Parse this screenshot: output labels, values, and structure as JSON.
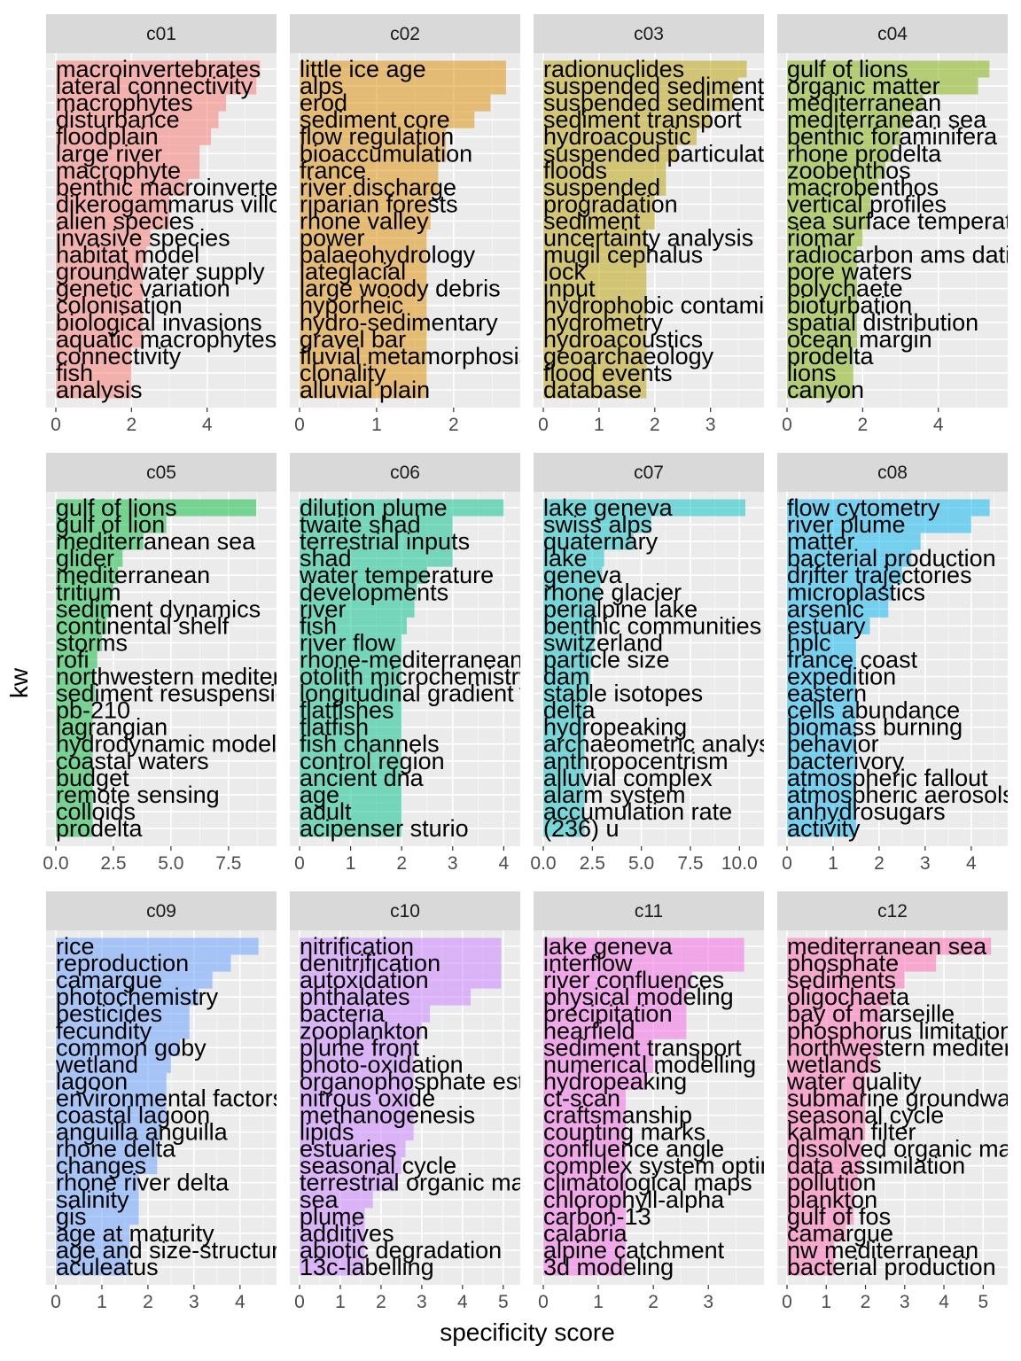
{
  "chart_data": {
    "type": "bar",
    "orientation": "horizontal",
    "facet_layout": "3x4 grid",
    "xlabel": "specificity score",
    "ylabel": "kw",
    "panels": [
      {
        "id": "c01",
        "color": "#F8766D",
        "xlim": [
          0,
          5.6
        ],
        "ticks": [
          "0",
          "2",
          "4"
        ],
        "tick_values": [
          0,
          2,
          4
        ],
        "categories": [
          "macroinvertebrates",
          "lateral connectivity",
          "macrophytes",
          "disturbance",
          "floodplain",
          "large river",
          "macrophyte",
          "benthic macroinvertebrates",
          "dikerogammarus villosus",
          "alien species",
          "invasive species",
          "habitat model",
          "groundwater supply",
          "genetic variation",
          "colonisation",
          "biological invasions",
          "aquatic macrophytes",
          "connectivity",
          "fish",
          "analysis"
        ],
        "values": [
          5.4,
          5.3,
          4.5,
          4.3,
          4.1,
          3.8,
          3.8,
          3.5,
          3.0,
          3.0,
          2.5,
          2.4,
          2.3,
          2.3,
          2.3,
          2.3,
          2.3,
          2.0,
          2.0,
          2.0
        ]
      },
      {
        "id": "c02",
        "color": "#DE8C00",
        "xlim": [
          0,
          2.75
        ],
        "ticks": [
          "0",
          "1",
          "2"
        ],
        "tick_values": [
          0,
          1,
          2
        ],
        "categories": [
          "little ice age",
          "alps",
          "erod",
          "sediment core",
          "flow regulation",
          "bioaccumulation",
          "france",
          "river discharge",
          "riparian forests",
          "rhone valley",
          "power",
          "palaeohydrology",
          "lateglacial",
          "large woody debris",
          "hyporheic",
          "hydro-sedimentary",
          "gravel bar",
          "fluvial metamorphosis",
          "clonality",
          "alluvial plain"
        ],
        "values": [
          2.68,
          2.68,
          2.48,
          2.27,
          1.9,
          1.9,
          1.8,
          1.8,
          1.7,
          1.7,
          1.65,
          1.65,
          1.65,
          1.65,
          1.65,
          1.65,
          1.65,
          1.65,
          1.65,
          1.65
        ]
      },
      {
        "id": "c03",
        "color": "#B79F00",
        "xlim": [
          0,
          3.8
        ],
        "ticks": [
          "0",
          "1",
          "2",
          "3"
        ],
        "tick_values": [
          0,
          1,
          2,
          3
        ],
        "categories": [
          "radionuclides",
          "suspended sediment",
          "suspended sediments",
          "sediment transport",
          "hydroacoustic",
          "suspended particulate matter",
          "floods",
          "suspended",
          "progradation",
          "sediment",
          "uncertainty analysis",
          "mugil cephalus",
          "lock",
          "input",
          "hydrophobic contaminants",
          "hydrometry",
          "hydroacoustics",
          "geoarchaeology",
          "flood events",
          "database"
        ],
        "values": [
          3.65,
          3.5,
          3.4,
          3.0,
          2.75,
          2.4,
          2.2,
          2.2,
          2.0,
          2.0,
          1.85,
          1.85,
          1.85,
          1.85,
          1.85,
          1.85,
          1.85,
          1.85,
          1.85,
          1.85
        ]
      },
      {
        "id": "c04",
        "color": "#7CAE00",
        "xlim": [
          0,
          5.6
        ],
        "ticks": [
          "0",
          "2",
          "4"
        ],
        "tick_values": [
          0,
          2,
          4
        ],
        "categories": [
          "gulf of lions",
          "organic matter",
          "mediterranean",
          "mediterranean sea",
          "benthic foraminifera",
          "rhone prodelta",
          "zoobenthos",
          "macrobenthos",
          "vertical profiles",
          "sea surface temperature",
          "riomar",
          "radiocarbon ams dating",
          "pore waters",
          "polychaete",
          "bioturbation",
          "spatial distribution",
          "ocean margin",
          "prodelta",
          "lions",
          "canyon"
        ],
        "values": [
          5.35,
          5.05,
          3.6,
          3.3,
          3.0,
          2.8,
          2.6,
          2.4,
          2.2,
          2.2,
          2.0,
          1.85,
          1.85,
          1.85,
          1.85,
          1.85,
          1.85,
          1.75,
          1.75,
          1.75
        ]
      },
      {
        "id": "c05",
        "color": "#00BA38",
        "xlim": [
          0,
          9.2
        ],
        "ticks": [
          "0.0",
          "2.5",
          "5.0",
          "7.5"
        ],
        "tick_values": [
          0,
          2.5,
          5,
          7.5
        ],
        "categories": [
          "gulf of lions",
          "gulf of lion",
          "mediterranean sea",
          "glider",
          "mediterranean",
          "tritium",
          "sediment dynamics",
          "continental shelf",
          "storms",
          "rofi",
          "northwestern mediterranean",
          "sediment resuspension",
          "pb-210",
          "lagrangian",
          "hydrodynamic model",
          "coastal waters",
          "budget",
          "remote sensing",
          "colloids",
          "prodelta"
        ],
        "values": [
          8.7,
          4.8,
          3.8,
          2.9,
          2.7,
          2.5,
          2.4,
          2.2,
          2.0,
          1.8,
          1.7,
          1.7,
          1.6,
          1.6,
          1.6,
          1.6,
          1.6,
          1.6,
          1.6,
          1.6
        ]
      },
      {
        "id": "c06",
        "color": "#00C08B",
        "xlim": [
          0,
          4.15
        ],
        "ticks": [
          "0",
          "1",
          "2",
          "3",
          "4"
        ],
        "tick_values": [
          0,
          1,
          2,
          3,
          4
        ],
        "categories": [
          "dilution plume",
          "twaite shad",
          "terrestrial inputs",
          "shad",
          "water temperature",
          "developments",
          "river",
          "fish",
          "river flow",
          "rhone-mediterranean",
          "otolith microchemistry",
          "longitudinal gradient",
          "flatfishes",
          "flatfish",
          "fish channels",
          "control region",
          "ancient dna",
          "age",
          "adult",
          "acipenser sturio"
        ],
        "values": [
          4.0,
          3.0,
          3.0,
          3.0,
          2.5,
          2.3,
          2.25,
          2.1,
          2.0,
          2.0,
          2.0,
          2.0,
          2.0,
          2.0,
          2.0,
          2.0,
          2.0,
          2.0,
          2.0,
          2.0
        ]
      },
      {
        "id": "c07",
        "color": "#00BFC4",
        "xlim": [
          0,
          10.8
        ],
        "ticks": [
          "0.0",
          "2.5",
          "5.0",
          "7.5",
          "10.0"
        ],
        "tick_values": [
          0,
          2.5,
          5,
          7.5,
          10
        ],
        "categories": [
          "lake geneva",
          "swiss alps",
          "quaternary",
          "lake",
          "geneva",
          "rhone glacier",
          "perialpine lake",
          "benthic communities",
          "switzerland",
          "particle size",
          "dam",
          "stable isotopes",
          "delta",
          "hydropeaking",
          "archaeometric analyses",
          "anthropocentrism",
          "alluvial complex",
          "alarm system",
          "accumulation rate",
          "(236) u"
        ],
        "values": [
          10.3,
          5.5,
          4.6,
          3.1,
          3.0,
          2.9,
          2.7,
          2.7,
          2.6,
          2.5,
          2.4,
          2.3,
          2.2,
          2.1,
          2.1,
          2.1,
          2.1,
          2.1,
          2.1,
          2.1
        ]
      },
      {
        "id": "c08",
        "color": "#00B4F0",
        "xlim": [
          0,
          4.6
        ],
        "ticks": [
          "0",
          "1",
          "2",
          "3",
          "4"
        ],
        "tick_values": [
          0,
          1,
          2,
          3,
          4
        ],
        "categories": [
          "flow cytometry",
          "river plume",
          "matter",
          "bacterial production",
          "drifter trajectories",
          "microplastics",
          "arsenic",
          "estuary",
          "hplc",
          "france coast",
          "expedition",
          "eastern",
          "cells abundance",
          "biomass burning",
          "behavior",
          "bacterivory",
          "atmospheric fallout",
          "atmospheric aerosols",
          "anhydrosugars",
          "activity"
        ],
        "values": [
          4.4,
          4.0,
          2.9,
          2.7,
          2.5,
          2.3,
          2.2,
          1.8,
          1.5,
          1.5,
          1.5,
          1.5,
          1.5,
          1.5,
          1.5,
          1.5,
          1.5,
          1.5,
          1.5,
          1.5
        ]
      },
      {
        "id": "c09",
        "color": "#619CFF",
        "xlim": [
          0,
          4.6
        ],
        "ticks": [
          "0",
          "1",
          "2",
          "3",
          "4"
        ],
        "tick_values": [
          0,
          1,
          2,
          3,
          4
        ],
        "categories": [
          "rice",
          "reproduction",
          "camargue",
          "photochemistry",
          "pesticides",
          "fecundity",
          "common goby",
          "wetland",
          "lagoon",
          "environmental factors",
          "coastal lagoon",
          "anguilla anguilla",
          "rhone delta",
          "changes",
          "rhone river delta",
          "salinity",
          "gis",
          "age at maturity",
          "age and size-structure",
          "aculeatus"
        ],
        "values": [
          4.4,
          3.8,
          3.4,
          3.1,
          2.9,
          2.9,
          2.7,
          2.5,
          2.4,
          2.4,
          2.4,
          2.3,
          2.2,
          2.2,
          1.8,
          1.8,
          1.8,
          1.6,
          1.6,
          1.6
        ]
      },
      {
        "id": "c10",
        "color": "#C77CFF",
        "xlim": [
          0,
          5.2
        ],
        "ticks": [
          "0",
          "1",
          "2",
          "3",
          "4",
          "5"
        ],
        "tick_values": [
          0,
          1,
          2,
          3,
          4,
          5
        ],
        "categories": [
          "nitrification",
          "denitrification",
          "autoxidation",
          "phthalates",
          "bacteria",
          "zooplankton",
          "plume front",
          "photo-oxidation",
          "organophosphate esters",
          "nitrous oxide",
          "methanogenesis",
          "lipids",
          "estuaries",
          "seasonal cycle",
          "terrestrial organic matter",
          "sea",
          "plume",
          "additives",
          "abiotic degradation",
          "13c-labelling"
        ],
        "values": [
          4.95,
          4.95,
          4.95,
          4.2,
          3.2,
          3.0,
          2.9,
          2.8,
          2.8,
          2.8,
          2.8,
          2.8,
          2.6,
          2.5,
          2.4,
          1.8,
          1.6,
          1.6,
          1.6,
          1.6
        ]
      },
      {
        "id": "c11",
        "color": "#F564E3",
        "xlim": [
          0,
          3.85
        ],
        "ticks": [
          "0",
          "1",
          "2",
          "3"
        ],
        "tick_values": [
          0,
          1,
          2,
          3
        ],
        "categories": [
          "lake geneva",
          "interflow",
          "river confluences",
          "physical modeling",
          "precipitation",
          "nearfield",
          "sediment transport",
          "numerical modelling",
          "hydropeaking",
          "ct-scan",
          "craftsmanship",
          "counting marks",
          "confluence angle",
          "complex system optimization",
          "climatological maps",
          "chlorophyll-alpha",
          "carbon-13",
          "calabria",
          "alpine catchment",
          "3d modeling"
        ],
        "values": [
          3.65,
          3.65,
          2.7,
          2.6,
          2.6,
          2.6,
          2.0,
          2.0,
          1.85,
          1.5,
          1.5,
          1.5,
          1.5,
          1.5,
          1.5,
          1.5,
          1.5,
          1.5,
          1.5,
          1.5
        ]
      },
      {
        "id": "c12",
        "color": "#FF64B0",
        "xlim": [
          0,
          5.4
        ],
        "ticks": [
          "0",
          "1",
          "2",
          "3",
          "4",
          "5"
        ],
        "tick_values": [
          0,
          1,
          2,
          3,
          4,
          5
        ],
        "categories": [
          "mediterranean sea",
          "phosphate",
          "sediments",
          "oligochaeta",
          "bay of marseille",
          "phosphorus limitation",
          "northwestern mediterranean",
          "wetlands",
          "water quality",
          "submarine groundwater discharge",
          "seasonal cycle",
          "kalman filter",
          "dissolved organic matter",
          "data assimilation",
          "pollution",
          "plankton",
          "gulf of fos",
          "camargue",
          "nw mediterranean",
          "bacterial production"
        ],
        "values": [
          5.2,
          3.8,
          3.0,
          2.7,
          2.4,
          2.4,
          2.4,
          2.3,
          2.0,
          2.0,
          2.0,
          2.0,
          1.9,
          1.9,
          1.8,
          1.7,
          1.7,
          1.5,
          1.2,
          1.2
        ]
      }
    ]
  }
}
